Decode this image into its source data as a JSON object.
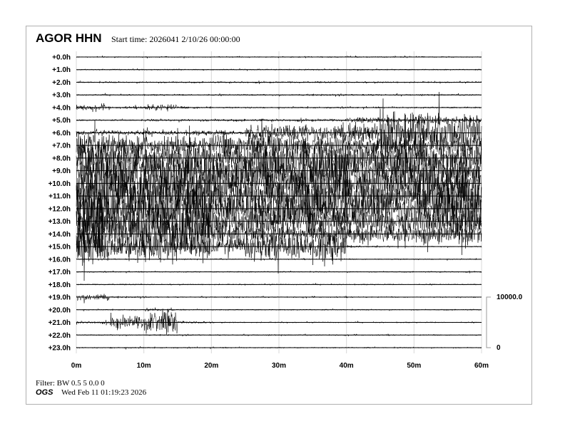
{
  "header": {
    "station": "AGOR HHN",
    "start_time": "Start time: 2026041   2/10/26 00:00:00"
  },
  "footer": {
    "filter": "Filter: BW 0.5 5 0.0 0",
    "organization": "OGS",
    "timestamp": "Wed Feb 11 01:19:23 2026"
  },
  "chart_data": {
    "type": "line",
    "subtype": "helicorder",
    "row_labels": [
      "+0.0h",
      "+1.0h",
      "+2.0h",
      "+3.0h",
      "+4.0h",
      "+5.0h",
      "+6.0h",
      "+7.0h",
      "+8.0h",
      "+9.0h",
      "+10.0h",
      "+11.0h",
      "+12.0h",
      "+13.0h",
      "+14.0h",
      "+15.0h",
      "+16.0h",
      "+17.0h",
      "+18.0h",
      "+19.0h",
      "+20.0h",
      "+21.0h",
      "+22.0h",
      "+23.0h"
    ],
    "x_ticks": [
      "0m",
      "10m",
      "20m",
      "30m",
      "40m",
      "50m",
      "60m"
    ],
    "xlim_minutes": [
      0,
      60
    ],
    "grid": "vertical every 10m",
    "scale_bar": {
      "top_label": "10000.0",
      "bottom_label": "0",
      "range_counts": [
        0,
        10000
      ]
    },
    "trace_color": "#000000",
    "envelope_bin_minutes": 5,
    "peak_amplitude_counts": [
      [
        150,
        150,
        150,
        150,
        150,
        150,
        150,
        150,
        150,
        150,
        150,
        150
      ],
      [
        150,
        150,
        150,
        150,
        150,
        150,
        150,
        150,
        150,
        150,
        150,
        150
      ],
      [
        200,
        200,
        200,
        200,
        200,
        200,
        200,
        200,
        200,
        200,
        200,
        200
      ],
      [
        200,
        200,
        200,
        200,
        200,
        200,
        200,
        200,
        200,
        200,
        200,
        200
      ],
      [
        600,
        300,
        800,
        300,
        200,
        200,
        200,
        200,
        200,
        200,
        200,
        200
      ],
      [
        200,
        200,
        300,
        300,
        300,
        300,
        300,
        300,
        600,
        600,
        1200,
        800
      ],
      [
        600,
        600,
        600,
        600,
        600,
        2000,
        2000,
        2000,
        2000,
        5000,
        5000,
        4000
      ],
      [
        3000,
        2500,
        2000,
        2000,
        3000,
        3000,
        2500,
        2500,
        2000,
        2500,
        2500,
        2500
      ],
      [
        4000,
        3500,
        3000,
        3500,
        3000,
        4500,
        4000,
        4500,
        3500,
        3500,
        3000,
        3000
      ],
      [
        5000,
        5000,
        4500,
        5000,
        4000,
        4000,
        4500,
        5000,
        4500,
        4000,
        4000,
        4000
      ],
      [
        5000,
        4500,
        5000,
        5000,
        4500,
        4000,
        4500,
        5000,
        4000,
        3500,
        4000,
        4000
      ],
      [
        5500,
        4500,
        5000,
        5500,
        3500,
        4000,
        5000,
        4500,
        4000,
        3000,
        3500,
        5000
      ],
      [
        6000,
        5000,
        4500,
        6000,
        3500,
        4500,
        4000,
        4500,
        4000,
        3500,
        4500,
        5500
      ],
      [
        6000,
        4500,
        4000,
        6000,
        3500,
        3500,
        4000,
        3500,
        3000,
        3000,
        3000,
        3000
      ],
      [
        5500,
        5000,
        4500,
        5500,
        3000,
        2000,
        2000,
        2500,
        2000,
        2000,
        2000,
        2500
      ],
      [
        4000,
        2500,
        4000,
        2500,
        2000,
        4000,
        3500,
        4000,
        300,
        150,
        150,
        150
      ],
      [
        150,
        150,
        150,
        150,
        150,
        150,
        150,
        150,
        150,
        150,
        150,
        150
      ],
      [
        150,
        150,
        150,
        150,
        150,
        150,
        150,
        150,
        150,
        150,
        150,
        150
      ],
      [
        150,
        150,
        150,
        150,
        150,
        150,
        150,
        150,
        150,
        150,
        150,
        150
      ],
      [
        800,
        200,
        150,
        150,
        150,
        150,
        150,
        150,
        150,
        150,
        150,
        150
      ],
      [
        150,
        150,
        300,
        150,
        150,
        150,
        150,
        150,
        150,
        150,
        150,
        150
      ],
      [
        300,
        1500,
        2500,
        300,
        150,
        150,
        150,
        150,
        150,
        150,
        150,
        150
      ],
      [
        150,
        150,
        150,
        150,
        150,
        150,
        150,
        150,
        150,
        150,
        150,
        150
      ],
      [
        150,
        200,
        150,
        150,
        150,
        150,
        150,
        150,
        150,
        150,
        150,
        150
      ]
    ]
  }
}
